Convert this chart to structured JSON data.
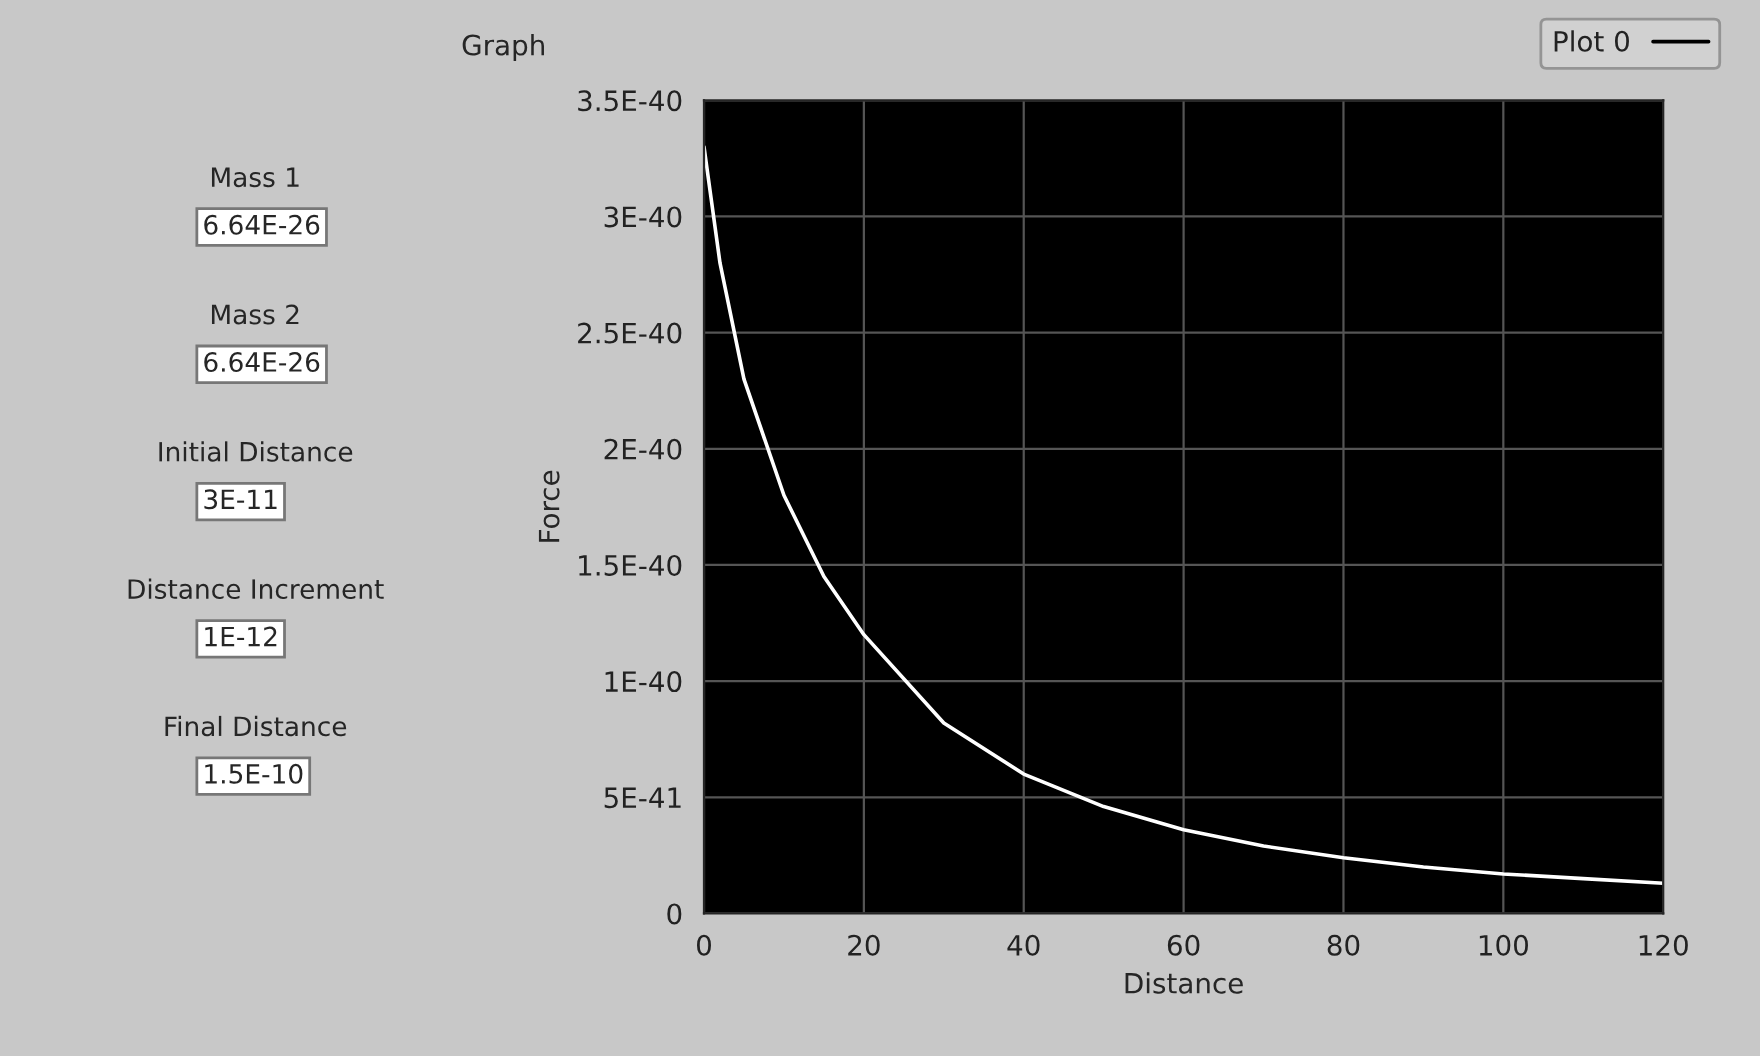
{
  "chart_data": {
    "type": "line",
    "title": "Graph",
    "xlabel": "Distance",
    "ylabel": "Force",
    "x": [
      0,
      2,
      5,
      10,
      15,
      20,
      30,
      40,
      50,
      60,
      70,
      80,
      90,
      100,
      110,
      120
    ],
    "series": [
      {
        "name": "Plot 0",
        "color": "#ffffff",
        "values": [
          3.3e-40,
          2.8e-40,
          2.3e-40,
          1.8e-40,
          1.45e-40,
          1.2e-40,
          8.2e-41,
          6e-41,
          4.6e-41,
          3.6e-41,
          2.9e-41,
          2.4e-41,
          2e-41,
          1.7e-41,
          1.5e-41,
          1.3e-41
        ]
      }
    ],
    "xlim": [
      0,
      120
    ],
    "xticks": [
      0,
      20,
      40,
      60,
      80,
      100,
      120
    ],
    "ylim": [
      0,
      3.5e-40
    ],
    "yticks": [
      0,
      {
        "value": 5e-41,
        "label": "5E-41"
      },
      {
        "value": 1e-40,
        "label": "1E-40"
      },
      {
        "value": 1.5e-40,
        "label": "1.5E-40"
      },
      {
        "value": 2e-40,
        "label": "2E-40"
      },
      {
        "value": 2.5e-40,
        "label": "2.5E-40"
      },
      {
        "value": 3e-40,
        "label": "3E-40"
      },
      {
        "value": 3.5e-40,
        "label": "3.5E-40"
      }
    ],
    "grid": true,
    "legend": "top right",
    "marker": "none",
    "line_style": "solid",
    "annotations": [
      "Mass 1",
      "6.64E-26",
      "Mass 2",
      "6.64E-26",
      "Initial Distance",
      "3E-11",
      "Distance Increment",
      "1E-12",
      "Final Distance",
      "1.5E-10"
    ]
  }
}
